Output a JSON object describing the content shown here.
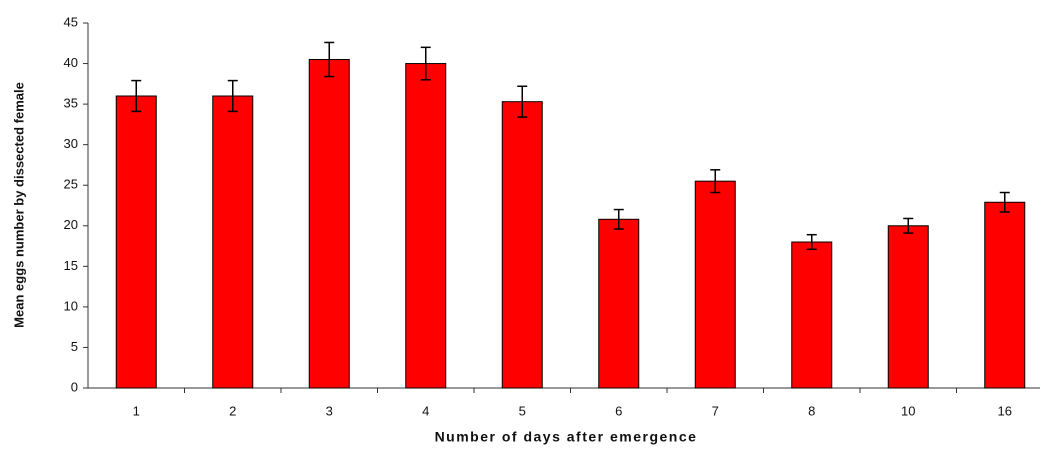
{
  "chart_data": {
    "type": "bar",
    "x_label": "Number of days after emergence",
    "y_label": "Mean eggs number by  dissected female",
    "categories": [
      "1",
      "2",
      "3",
      "4",
      "5",
      "6",
      "7",
      "8",
      "10",
      "16"
    ],
    "values": [
      36,
      36,
      40.5,
      40,
      35.3,
      20.8,
      25.5,
      18,
      20,
      22.9
    ],
    "errors": [
      1.9,
      1.9,
      2.1,
      2.0,
      1.9,
      1.2,
      1.4,
      0.9,
      0.9,
      1.2
    ],
    "color": "#ff0000",
    "ylim": [
      0,
      45
    ],
    "yticks": [
      0,
      5,
      10,
      15,
      20,
      25,
      30,
      35,
      40,
      45
    ],
    "grid": false
  }
}
